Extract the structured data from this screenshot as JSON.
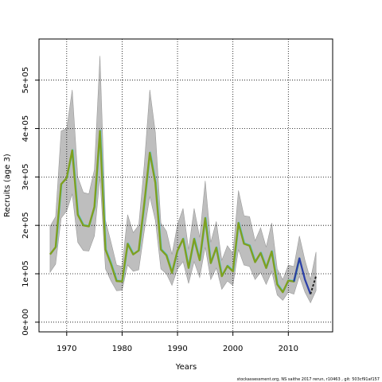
{
  "chart_data": {
    "type": "line",
    "xlabel": "Years",
    "ylabel": "Recruits (age 3)",
    "footer": "stockassessment.org, NS saithe 2017 rerun, r10463 , git: 503cf91af157",
    "xlim": [
      1965,
      2018
    ],
    "ylim": [
      -20000,
      585000
    ],
    "x_ticks": [
      1970,
      1980,
      1990,
      2000,
      2010
    ],
    "y_ticks": [
      0,
      100000,
      200000,
      300000,
      400000,
      500000
    ],
    "y_tick_labels": [
      "0e+00",
      "1e+05",
      "2e+05",
      "3e+05",
      "4e+05",
      "5e+05"
    ],
    "grid": true,
    "grid_style": "dotted",
    "colors": {
      "band": "#bebebe",
      "band_edge": "#9a9a9a",
      "estimate": "#7fa020",
      "overlay_cyan": "#5bc8e0",
      "overlay_blue": "#2a3fa8",
      "projection": "#222222"
    },
    "years": [
      1967,
      1968,
      1969,
      1970,
      1971,
      1972,
      1973,
      1974,
      1975,
      1976,
      1977,
      1978,
      1979,
      1980,
      1981,
      1982,
      1983,
      1984,
      1985,
      1986,
      1987,
      1988,
      1989,
      1990,
      1991,
      1992,
      1993,
      1994,
      1995,
      1996,
      1997,
      1998,
      1999,
      2000,
      2001,
      2002,
      2003,
      2004,
      2005,
      2006,
      2007,
      2008,
      2009,
      2010,
      2011,
      2012,
      2013,
      2014,
      2015
    ],
    "estimate": [
      140000,
      155000,
      285000,
      298000,
      355000,
      222000,
      200000,
      198000,
      238000,
      395000,
      150000,
      120000,
      85000,
      84000,
      162000,
      140000,
      148000,
      245000,
      350000,
      288000,
      150000,
      138000,
      102000,
      148000,
      172000,
      112000,
      172000,
      128000,
      215000,
      122000,
      154000,
      95000,
      116000,
      105000,
      205000,
      162000,
      158000,
      124000,
      143000,
      112000,
      146000,
      78000,
      62000,
      86000,
      84000,
      132000,
      88000,
      58000,
      95000
    ],
    "lower": [
      103000,
      120000,
      215000,
      230000,
      265000,
      165000,
      148000,
      147000,
      178000,
      300000,
      110000,
      85000,
      65000,
      66000,
      118000,
      105000,
      108000,
      188000,
      260000,
      210000,
      110000,
      100000,
      76000,
      110000,
      125000,
      80000,
      125000,
      92000,
      155000,
      88000,
      112000,
      68000,
      85000,
      76000,
      150000,
      118000,
      115000,
      88000,
      103000,
      78000,
      105000,
      56000,
      45000,
      62000,
      58000,
      95000,
      62000,
      40000,
      65000
    ],
    "upper": [
      198000,
      218000,
      395000,
      400000,
      480000,
      300000,
      268000,
      265000,
      315000,
      550000,
      210000,
      165000,
      118000,
      115000,
      222000,
      185000,
      200000,
      325000,
      480000,
      392000,
      205000,
      188000,
      140000,
      202000,
      235000,
      150000,
      235000,
      175000,
      292000,
      165000,
      208000,
      128000,
      158000,
      142000,
      272000,
      220000,
      218000,
      168000,
      195000,
      155000,
      205000,
      110000,
      88000,
      118000,
      115000,
      178000,
      128000,
      88000,
      145000
    ],
    "series": [
      {
        "values": [
          140000,
          155000,
          285000,
          298000,
          355000,
          222000,
          200000,
          198000,
          238000,
          395000,
          150000,
          120000,
          85000,
          84000,
          162000,
          140000,
          148000,
          245000,
          350000,
          288000,
          150000,
          138000,
          102000,
          148000,
          172000,
          112000,
          172000,
          128000,
          215000,
          122000,
          154000,
          95000,
          116000,
          105000,
          205000,
          162000,
          158000,
          124000,
          143000,
          112000,
          146000,
          78000,
          62000,
          86000,
          84000,
          132000,
          88000,
          58000,
          95000
        ]
      }
    ]
  }
}
